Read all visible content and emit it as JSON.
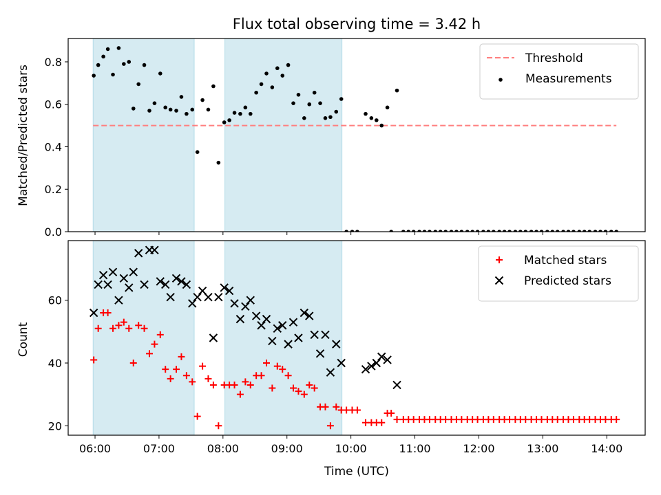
{
  "chart_data": [
    {
      "type": "scatter",
      "title": "Flux total observing time = 3.42 h",
      "ylabel": "Matched/Predicted stars",
      "xlabel": "",
      "ylim": [
        0,
        0.91
      ],
      "xlim": [
        5.58,
        14.6
      ],
      "yticks": [
        0.0,
        0.2,
        0.4,
        0.6,
        0.8
      ],
      "ytick_labels": [
        "0.0",
        "0.2",
        "0.4",
        "0.6",
        "0.8"
      ],
      "grid": false,
      "legend_position": "top-right",
      "shaded_intervals": [
        [
          5.97,
          7.55
        ],
        [
          8.03,
          9.86
        ]
      ],
      "shade_color": "#add8e6",
      "threshold": {
        "name": "Threshold",
        "y": 0.5,
        "x_range": [
          5.97,
          14.15
        ],
        "color": "#ff7f7f",
        "style": "dashed"
      },
      "series": [
        {
          "name": "Measurements",
          "marker": "dot",
          "color": "#000000",
          "points": [
            [
              5.98,
              0.735
            ],
            [
              6.05,
              0.785
            ],
            [
              6.13,
              0.825
            ],
            [
              6.2,
              0.86
            ],
            [
              6.28,
              0.74
            ],
            [
              6.37,
              0.865
            ],
            [
              6.45,
              0.79
            ],
            [
              6.53,
              0.8
            ],
            [
              6.6,
              0.58
            ],
            [
              6.68,
              0.695
            ],
            [
              6.77,
              0.785
            ],
            [
              6.85,
              0.57
            ],
            [
              6.93,
              0.605
            ],
            [
              7.02,
              0.745
            ],
            [
              7.1,
              0.585
            ],
            [
              7.18,
              0.575
            ],
            [
              7.27,
              0.57
            ],
            [
              7.35,
              0.635
            ],
            [
              7.43,
              0.555
            ],
            [
              7.52,
              0.575
            ],
            [
              7.6,
              0.375
            ],
            [
              7.68,
              0.62
            ],
            [
              7.77,
              0.575
            ],
            [
              7.85,
              0.685
            ],
            [
              7.93,
              0.325
            ],
            [
              8.02,
              0.515
            ],
            [
              8.1,
              0.525
            ],
            [
              8.18,
              0.56
            ],
            [
              8.27,
              0.555
            ],
            [
              8.35,
              0.585
            ],
            [
              8.43,
              0.555
            ],
            [
              8.52,
              0.655
            ],
            [
              8.6,
              0.695
            ],
            [
              8.68,
              0.745
            ],
            [
              8.77,
              0.68
            ],
            [
              8.85,
              0.77
            ],
            [
              8.93,
              0.735
            ],
            [
              9.02,
              0.785
            ],
            [
              9.1,
              0.605
            ],
            [
              9.18,
              0.645
            ],
            [
              9.27,
              0.535
            ],
            [
              9.35,
              0.6
            ],
            [
              9.43,
              0.655
            ],
            [
              9.52,
              0.605
            ],
            [
              9.6,
              0.535
            ],
            [
              9.68,
              0.54
            ],
            [
              9.77,
              0.565
            ],
            [
              9.85,
              0.625
            ],
            [
              9.93,
              0.0
            ],
            [
              10.02,
              0.0
            ],
            [
              10.1,
              0.0
            ],
            [
              10.23,
              0.555
            ],
            [
              10.32,
              0.535
            ],
            [
              10.4,
              0.525
            ],
            [
              10.48,
              0.5
            ],
            [
              10.57,
              0.585
            ],
            [
              10.63,
              0.0
            ],
            [
              10.72,
              0.665
            ],
            [
              10.82,
              0.0
            ],
            [
              10.9,
              0.0
            ],
            [
              10.98,
              0.0
            ],
            [
              11.07,
              0.0
            ],
            [
              11.15,
              0.0
            ],
            [
              11.23,
              0.0
            ],
            [
              11.32,
              0.0
            ],
            [
              11.4,
              0.0
            ],
            [
              11.48,
              0.0
            ],
            [
              11.57,
              0.0
            ],
            [
              11.65,
              0.0
            ],
            [
              11.73,
              0.0
            ],
            [
              11.82,
              0.0
            ],
            [
              11.9,
              0.0
            ],
            [
              11.98,
              0.0
            ],
            [
              12.07,
              0.0
            ],
            [
              12.15,
              0.0
            ],
            [
              12.23,
              0.0
            ],
            [
              12.32,
              0.0
            ],
            [
              12.4,
              0.0
            ],
            [
              12.48,
              0.0
            ],
            [
              12.57,
              0.0
            ],
            [
              12.65,
              0.0
            ],
            [
              12.73,
              0.0
            ],
            [
              12.82,
              0.0
            ],
            [
              12.9,
              0.0
            ],
            [
              12.98,
              0.0
            ],
            [
              13.07,
              0.0
            ],
            [
              13.15,
              0.0
            ],
            [
              13.23,
              0.0
            ],
            [
              13.32,
              0.0
            ],
            [
              13.4,
              0.0
            ],
            [
              13.48,
              0.0
            ],
            [
              13.57,
              0.0
            ],
            [
              13.65,
              0.0
            ],
            [
              13.73,
              0.0
            ],
            [
              13.82,
              0.0
            ],
            [
              13.9,
              0.0
            ],
            [
              13.98,
              0.0
            ],
            [
              14.07,
              0.0
            ],
            [
              14.15,
              0.0
            ]
          ]
        }
      ]
    },
    {
      "type": "scatter",
      "title": "",
      "ylabel": "Count",
      "xlabel": "Time (UTC)",
      "ylim": [
        17,
        79
      ],
      "xlim": [
        5.58,
        14.6
      ],
      "yticks": [
        20,
        40,
        60
      ],
      "ytick_labels": [
        "20",
        "40",
        "60"
      ],
      "xticks": [
        6,
        7,
        8,
        9,
        10,
        11,
        12,
        13,
        14
      ],
      "xtick_labels": [
        "06:00",
        "07:00",
        "08:00",
        "09:00",
        "10:00",
        "11:00",
        "12:00",
        "13:00",
        "14:00"
      ],
      "grid": false,
      "legend_position": "top-right",
      "shaded_intervals": [
        [
          5.97,
          7.55
        ],
        [
          8.03,
          9.86
        ]
      ],
      "shade_color": "#add8e6",
      "series": [
        {
          "name": "Matched stars",
          "marker": "plus",
          "color": "#ff0000",
          "points": [
            [
              5.98,
              41
            ],
            [
              6.05,
              51
            ],
            [
              6.13,
              56
            ],
            [
              6.2,
              56
            ],
            [
              6.28,
              51
            ],
            [
              6.37,
              52
            ],
            [
              6.45,
              53
            ],
            [
              6.53,
              51
            ],
            [
              6.6,
              40
            ],
            [
              6.68,
              52
            ],
            [
              6.77,
              51
            ],
            [
              6.85,
              43
            ],
            [
              6.93,
              46
            ],
            [
              7.02,
              49
            ],
            [
              7.1,
              38
            ],
            [
              7.18,
              35
            ],
            [
              7.27,
              38
            ],
            [
              7.35,
              42
            ],
            [
              7.43,
              36
            ],
            [
              7.52,
              34
            ],
            [
              7.6,
              23
            ],
            [
              7.68,
              39
            ],
            [
              7.77,
              35
            ],
            [
              7.85,
              33
            ],
            [
              7.93,
              20
            ],
            [
              8.02,
              33
            ],
            [
              8.1,
              33
            ],
            [
              8.18,
              33
            ],
            [
              8.27,
              30
            ],
            [
              8.35,
              34
            ],
            [
              8.43,
              33
            ],
            [
              8.52,
              36
            ],
            [
              8.6,
              36
            ],
            [
              8.68,
              40
            ],
            [
              8.77,
              32
            ],
            [
              8.85,
              39
            ],
            [
              8.93,
              38
            ],
            [
              9.02,
              36
            ],
            [
              9.1,
              32
            ],
            [
              9.18,
              31
            ],
            [
              9.27,
              30
            ],
            [
              9.35,
              33
            ],
            [
              9.43,
              32
            ],
            [
              9.52,
              26
            ],
            [
              9.6,
              26
            ],
            [
              9.68,
              20
            ],
            [
              9.77,
              26
            ],
            [
              9.85,
              25
            ],
            [
              9.93,
              25
            ],
            [
              10.02,
              25
            ],
            [
              10.1,
              25
            ],
            [
              10.23,
              21
            ],
            [
              10.32,
              21
            ],
            [
              10.4,
              21
            ],
            [
              10.48,
              21
            ],
            [
              10.57,
              24
            ],
            [
              10.63,
              24
            ],
            [
              10.72,
              22
            ],
            [
              10.82,
              22
            ],
            [
              10.9,
              22
            ],
            [
              10.98,
              22
            ],
            [
              11.07,
              22
            ],
            [
              11.15,
              22
            ],
            [
              11.23,
              22
            ],
            [
              11.32,
              22
            ],
            [
              11.4,
              22
            ],
            [
              11.48,
              22
            ],
            [
              11.57,
              22
            ],
            [
              11.65,
              22
            ],
            [
              11.73,
              22
            ],
            [
              11.82,
              22
            ],
            [
              11.9,
              22
            ],
            [
              11.98,
              22
            ],
            [
              12.07,
              22
            ],
            [
              12.15,
              22
            ],
            [
              12.23,
              22
            ],
            [
              12.32,
              22
            ],
            [
              12.4,
              22
            ],
            [
              12.48,
              22
            ],
            [
              12.57,
              22
            ],
            [
              12.65,
              22
            ],
            [
              12.73,
              22
            ],
            [
              12.82,
              22
            ],
            [
              12.9,
              22
            ],
            [
              12.98,
              22
            ],
            [
              13.07,
              22
            ],
            [
              13.15,
              22
            ],
            [
              13.23,
              22
            ],
            [
              13.32,
              22
            ],
            [
              13.4,
              22
            ],
            [
              13.48,
              22
            ],
            [
              13.57,
              22
            ],
            [
              13.65,
              22
            ],
            [
              13.73,
              22
            ],
            [
              13.82,
              22
            ],
            [
              13.9,
              22
            ],
            [
              13.98,
              22
            ],
            [
              14.07,
              22
            ],
            [
              14.15,
              22
            ]
          ]
        },
        {
          "name": "Predicted stars",
          "marker": "x",
          "color": "#000000",
          "points": [
            [
              5.98,
              56
            ],
            [
              6.05,
              65
            ],
            [
              6.13,
              68
            ],
            [
              6.2,
              65
            ],
            [
              6.28,
              69
            ],
            [
              6.37,
              60
            ],
            [
              6.45,
              67
            ],
            [
              6.53,
              64
            ],
            [
              6.6,
              69
            ],
            [
              6.68,
              75
            ],
            [
              6.77,
              65
            ],
            [
              6.85,
              76
            ],
            [
              6.93,
              76
            ],
            [
              7.02,
              66
            ],
            [
              7.1,
              65
            ],
            [
              7.18,
              61
            ],
            [
              7.27,
              67
            ],
            [
              7.35,
              66
            ],
            [
              7.43,
              65
            ],
            [
              7.52,
              59
            ],
            [
              7.6,
              61
            ],
            [
              7.68,
              63
            ],
            [
              7.77,
              61
            ],
            [
              7.85,
              48
            ],
            [
              7.93,
              61
            ],
            [
              8.02,
              64
            ],
            [
              8.1,
              63
            ],
            [
              8.18,
              59
            ],
            [
              8.27,
              54
            ],
            [
              8.35,
              58
            ],
            [
              8.43,
              60
            ],
            [
              8.52,
              55
            ],
            [
              8.6,
              52
            ],
            [
              8.68,
              54
            ],
            [
              8.77,
              47
            ],
            [
              8.85,
              51
            ],
            [
              8.93,
              52
            ],
            [
              9.02,
              46
            ],
            [
              9.1,
              53
            ],
            [
              9.18,
              48
            ],
            [
              9.27,
              56
            ],
            [
              9.35,
              55
            ],
            [
              9.43,
              49
            ],
            [
              9.52,
              43
            ],
            [
              9.6,
              49
            ],
            [
              9.68,
              37
            ],
            [
              9.77,
              46
            ],
            [
              9.85,
              40
            ],
            [
              10.23,
              38
            ],
            [
              10.32,
              39
            ],
            [
              10.4,
              40
            ],
            [
              10.48,
              42
            ],
            [
              10.57,
              41
            ],
            [
              10.72,
              33
            ]
          ]
        }
      ]
    }
  ]
}
